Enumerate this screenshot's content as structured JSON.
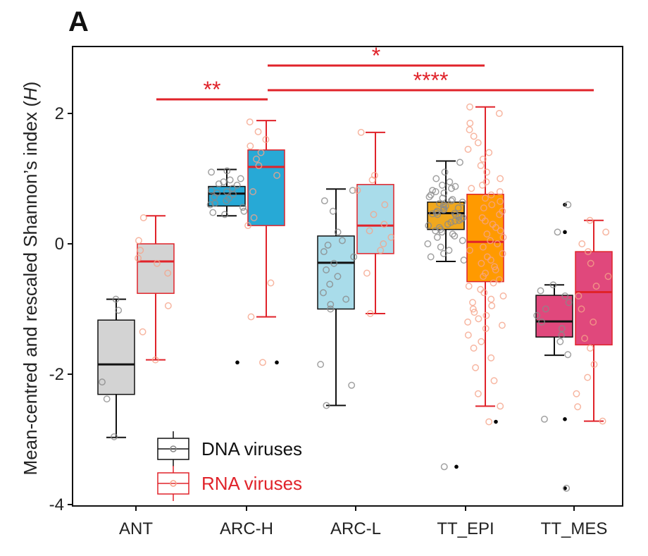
{
  "panel_label": "A",
  "colors": {
    "dna": "#111111",
    "rna": "#e0232a",
    "sig": "#e0232a"
  },
  "chart_data": {
    "type": "box",
    "title": "",
    "xlabel": "",
    "ylabel_main": "Mean-centred and rescaled Shannon’s index (",
    "ylabel_var": "H",
    "ylabel_end": ")",
    "ylim": [
      -4,
      3.0
    ],
    "yticks": [
      2,
      0,
      -2,
      -4
    ],
    "ytick_labels": [
      "2",
      "0",
      "-2",
      "-4"
    ],
    "categories": [
      "ANT",
      "ARC-H",
      "ARC-L",
      "TT_EPI",
      "TT_MES"
    ],
    "series": [
      {
        "name": "DNA viruses",
        "kind": "dna",
        "boxes": [
          {
            "category": "ANT",
            "fill": "#d3d3d3",
            "whisker_low": -2.97,
            "q1": -2.31,
            "median": -1.85,
            "q3": -1.17,
            "whisker_high": -0.85,
            "outliers": [],
            "points": [
              -0.85,
              -1.02,
              -2.12,
              -2.38,
              -2.96
            ]
          },
          {
            "category": "ARC-H",
            "fill": "#27a9d6",
            "whisker_low": 0.43,
            "q1": 0.58,
            "median": 0.77,
            "q3": 0.88,
            "whisker_high": 1.14,
            "outliers": [
              -1.82
            ],
            "points": [
              1.12,
              1.1,
              1.0,
              0.98,
              0.95,
              0.92,
              0.9,
              0.85,
              0.82,
              0.8,
              0.78,
              0.76,
              0.72,
              0.7,
              0.66,
              0.62,
              0.6,
              0.56,
              0.5,
              0.48,
              0.45
            ]
          },
          {
            "category": "ARC-L",
            "fill": "#a9dcea",
            "whisker_low": -2.48,
            "q1": -1.0,
            "median": -0.29,
            "q3": 0.12,
            "whisker_high": 0.84,
            "outliers": [],
            "points": [
              0.82,
              0.66,
              0.5,
              0.18,
              0.05,
              -0.02,
              -0.12,
              -0.2,
              -0.3,
              -0.4,
              -0.5,
              -0.62,
              -0.75,
              -0.85,
              -0.93,
              -1.0,
              -1.85,
              -2.17,
              -2.48
            ]
          },
          {
            "category": "TT_EPI",
            "fill": "#f0a81e",
            "whisker_low": -0.27,
            "q1": 0.22,
            "median": 0.47,
            "q3": 0.64,
            "whisker_high": 1.27,
            "outliers": [
              -3.42
            ],
            "points": [
              1.25,
              1.1,
              1.0,
              0.95,
              0.9,
              0.88,
              0.85,
              0.82,
              0.8,
              0.78,
              0.75,
              0.72,
              0.7,
              0.68,
              0.66,
              0.64,
              0.62,
              0.6,
              0.58,
              0.56,
              0.55,
              0.53,
              0.52,
              0.5,
              0.48,
              0.47,
              0.46,
              0.45,
              0.44,
              0.42,
              0.4,
              0.38,
              0.36,
              0.35,
              0.33,
              0.3,
              0.28,
              0.25,
              0.22,
              0.2,
              0.18,
              0.15,
              0.12,
              0.1,
              0.05,
              0.0,
              -0.05,
              -0.1,
              -0.15,
              -0.2,
              -0.25,
              -3.42
            ]
          },
          {
            "category": "TT_MES",
            "fill": "#e0487c",
            "whisker_low": -1.71,
            "q1": -1.43,
            "median": -1.19,
            "q3": -0.79,
            "whisker_high": -0.63,
            "outliers": [
              0.6,
              0.18,
              -2.69,
              -3.75
            ],
            "points": [
              0.6,
              0.18,
              -0.63,
              -0.72,
              -0.8,
              -0.9,
              -1.0,
              -1.1,
              -1.2,
              -1.3,
              -1.4,
              -1.5,
              -1.7,
              -2.69,
              -3.75
            ]
          }
        ]
      },
      {
        "name": "RNA viruses",
        "kind": "rna",
        "boxes": [
          {
            "category": "ANT",
            "fill": "#d3d3d3",
            "whisker_low": -1.78,
            "q1": -0.76,
            "median": -0.27,
            "q3": 0.0,
            "whisker_high": 0.43,
            "outliers": [],
            "points": [
              0.4,
              0.05,
              -0.1,
              -0.22,
              -0.3,
              -0.45,
              -0.95,
              -1.35,
              -1.78
            ]
          },
          {
            "category": "ARC-H",
            "fill": "#27a9d6",
            "whisker_low": -1.12,
            "q1": 0.28,
            "median": 1.18,
            "q3": 1.44,
            "whisker_high": 1.89,
            "outliers": [
              -1.82
            ],
            "points": [
              1.87,
              1.72,
              1.6,
              1.5,
              1.4,
              1.3,
              1.2,
              1.05,
              0.8,
              0.4,
              0.28,
              -0.6,
              -1.12,
              -1.82
            ]
          },
          {
            "category": "ARC-L",
            "fill": "#a9dcea",
            "whisker_low": -1.07,
            "q1": -0.15,
            "median": 0.28,
            "q3": 0.91,
            "whisker_high": 1.71,
            "outliers": [],
            "points": [
              1.71,
              1.05,
              0.98,
              0.82,
              0.6,
              0.45,
              0.3,
              0.2,
              0.1,
              0.0,
              -0.1,
              -0.45,
              -1.07
            ]
          },
          {
            "category": "TT_EPI",
            "fill": "#ff9a00",
            "whisker_low": -2.49,
            "q1": -0.58,
            "median": 0.03,
            "q3": 0.76,
            "whisker_high": 2.1,
            "outliers": [
              -2.73
            ],
            "points": [
              2.1,
              2.0,
              1.85,
              1.75,
              1.65,
              1.55,
              1.45,
              1.4,
              1.3,
              1.2,
              1.1,
              1.0,
              0.95,
              0.9,
              0.85,
              0.8,
              0.75,
              0.7,
              0.65,
              0.6,
              0.55,
              0.5,
              0.45,
              0.4,
              0.35,
              0.3,
              0.25,
              0.2,
              0.15,
              0.1,
              0.05,
              0.0,
              -0.05,
              -0.1,
              -0.15,
              -0.2,
              -0.25,
              -0.3,
              -0.35,
              -0.4,
              -0.45,
              -0.5,
              -0.55,
              -0.6,
              -0.65,
              -0.7,
              -0.75,
              -0.8,
              -0.85,
              -0.9,
              -0.95,
              -1.0,
              -1.05,
              -1.1,
              -1.15,
              -1.2,
              -1.25,
              -1.3,
              -1.4,
              -1.5,
              -1.6,
              -1.75,
              -1.9,
              -2.1,
              -2.3,
              -2.49,
              -2.73
            ]
          },
          {
            "category": "TT_MES",
            "fill": "#e0487c",
            "whisker_low": -2.72,
            "q1": -1.55,
            "median": -0.74,
            "q3": -0.12,
            "whisker_high": 0.36,
            "outliers": [],
            "points": [
              0.36,
              0.18,
              0.0,
              -0.12,
              -0.3,
              -0.5,
              -0.65,
              -0.8,
              -1.0,
              -1.2,
              -1.45,
              -1.6,
              -1.85,
              -2.05,
              -2.3,
              -2.5,
              -2.72
            ]
          }
        ]
      }
    ],
    "significance": [
      {
        "from_category": "ARC-H",
        "to_category": "TT_EPI",
        "from_series": "dna",
        "to_series": "rna",
        "label": "*",
        "level": 2.72
      },
      {
        "from_category": "ARC-H",
        "to_category": "TT_MES",
        "from_series": "dna",
        "to_series": "rna",
        "label": "****",
        "level": 2.34
      },
      {
        "from_category": "ANT",
        "to_category": "ARC-H",
        "from_series": "dna",
        "to_series": "dna",
        "label": "**",
        "level": 2.22
      }
    ],
    "legend": {
      "placement": "bottom-left",
      "entries": [
        {
          "label": "DNA viruses",
          "kind": "dna"
        },
        {
          "label": "RNA viruses",
          "kind": "rna"
        }
      ]
    },
    "grid": false
  }
}
